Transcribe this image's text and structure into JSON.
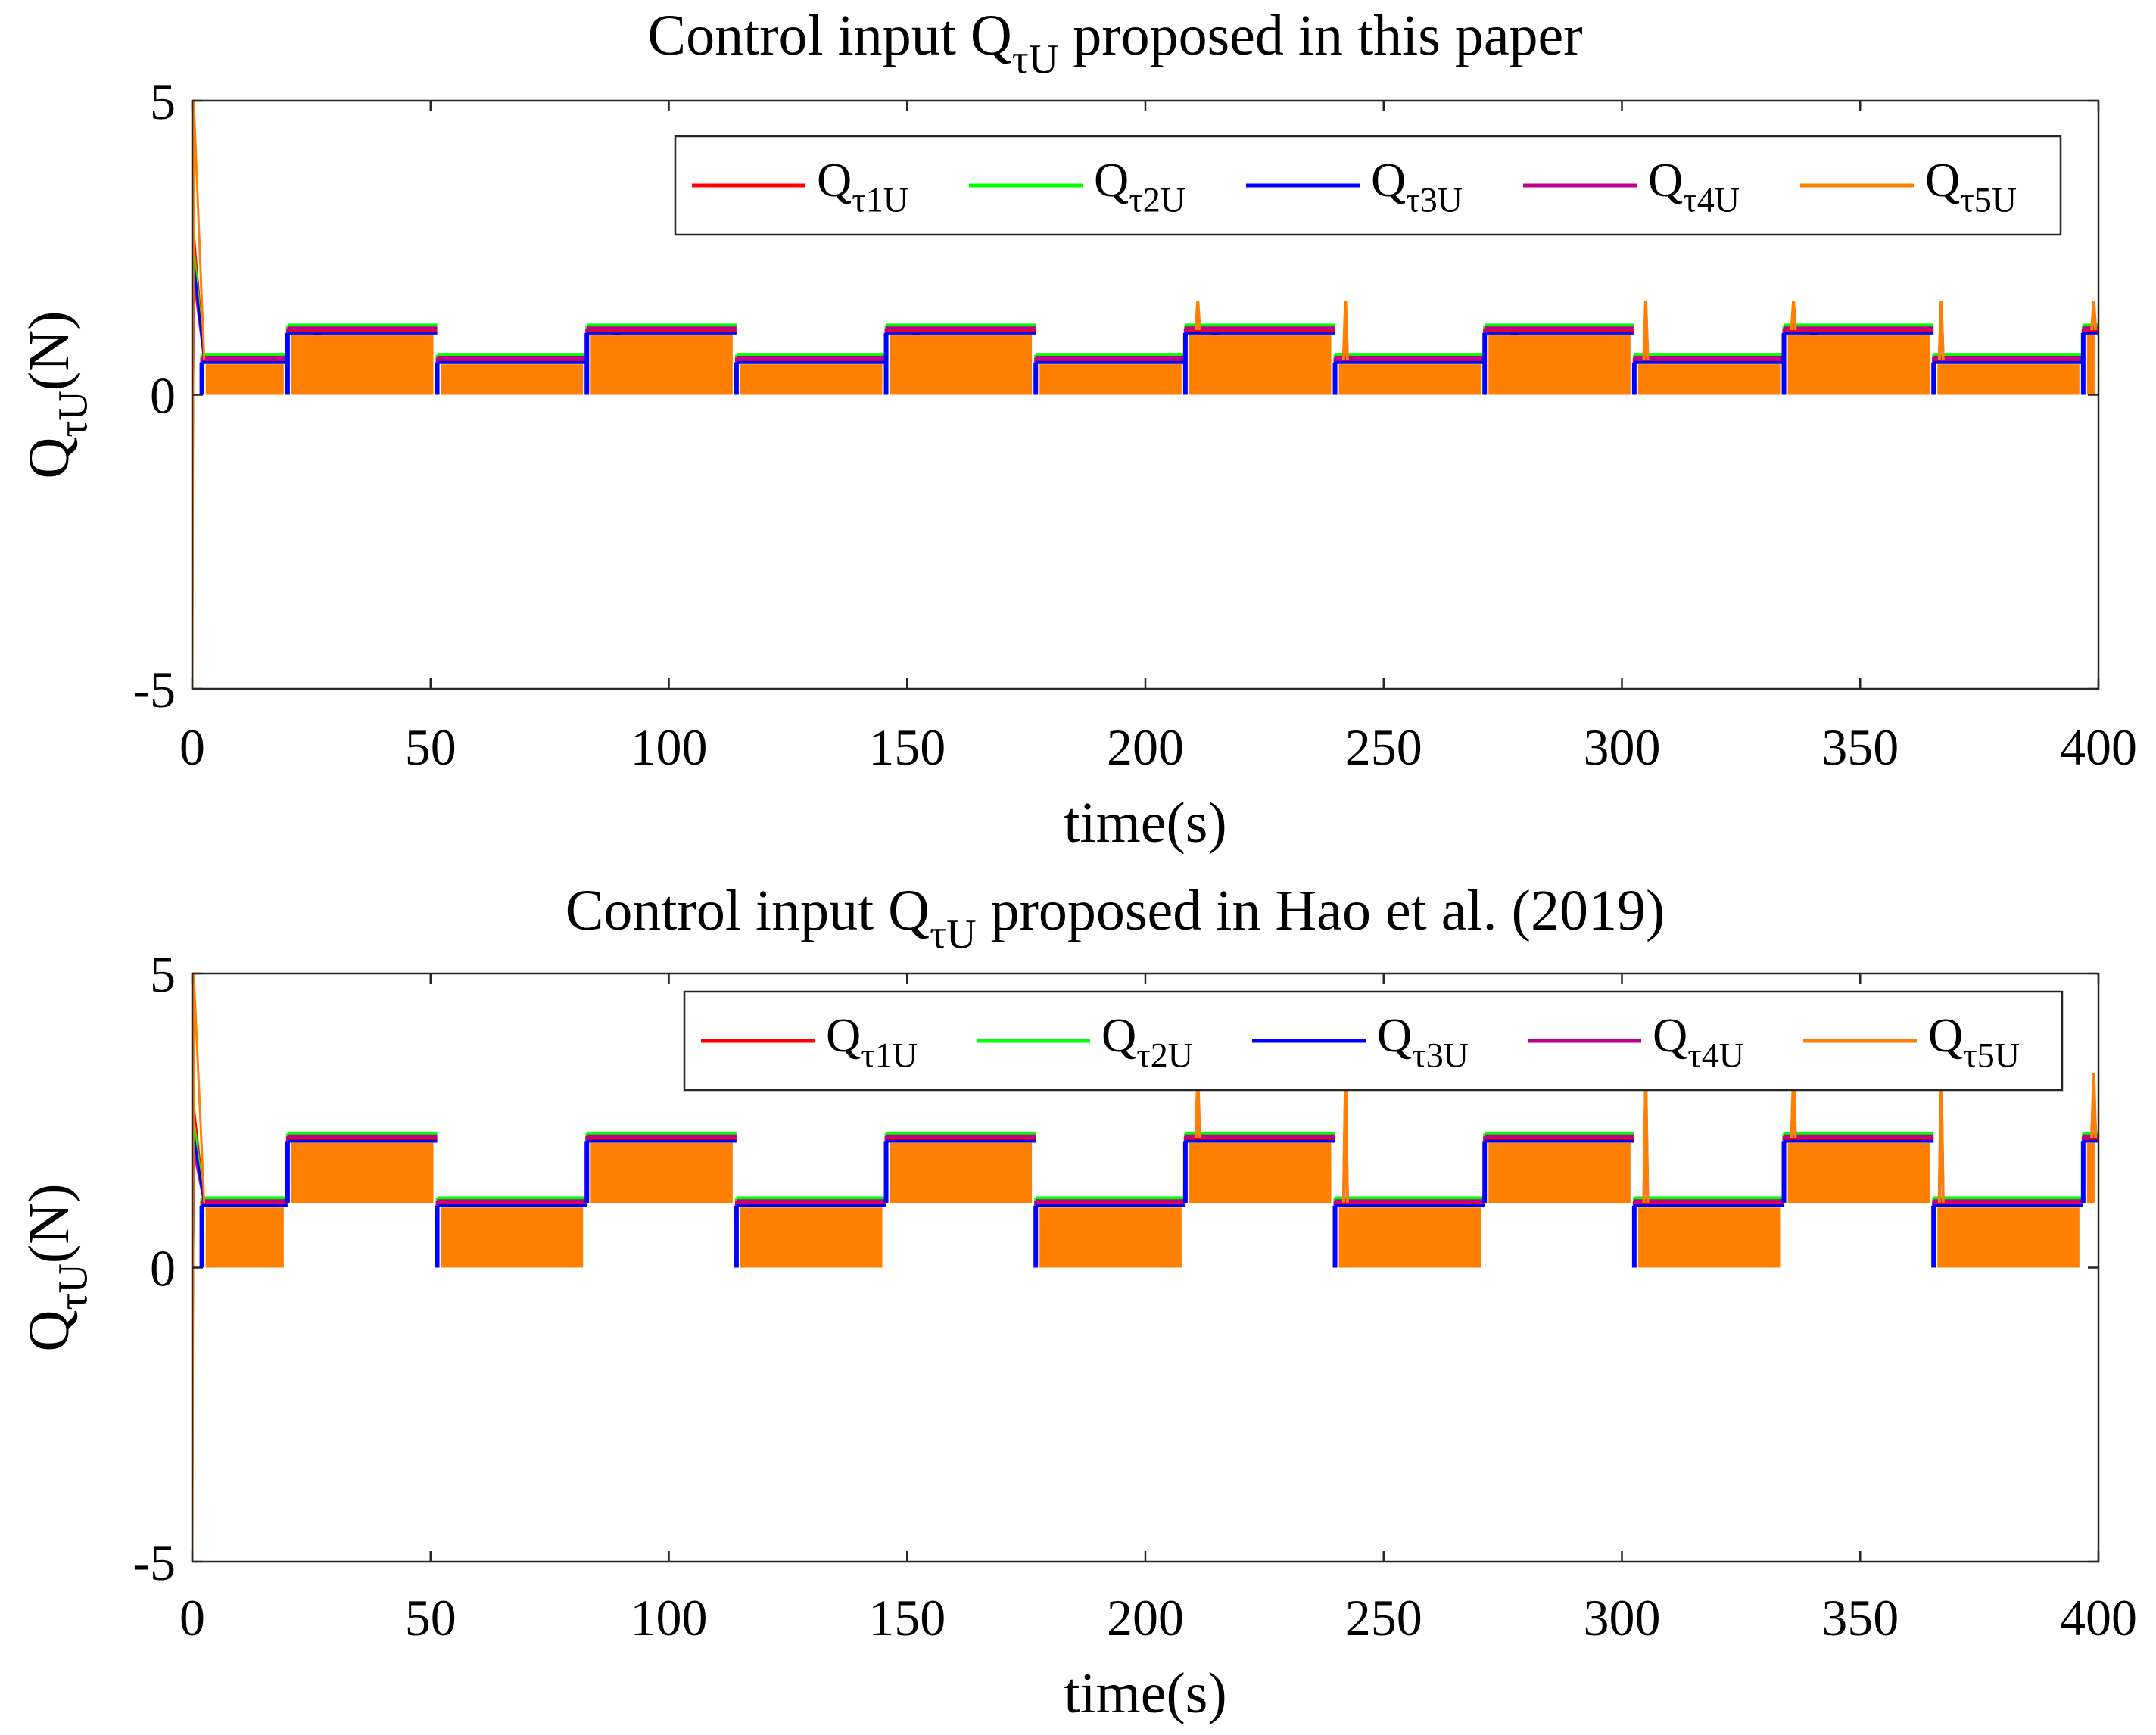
{
  "figure": {
    "background": "#ffffff"
  },
  "chart_data": [
    {
      "type": "line",
      "title": "Control input Q",
      "title_sub": "τU",
      "title_rest": " proposed in this paper",
      "xlabel": "time(s)",
      "ylabel": "Q",
      "ylabel_sub": "τU",
      "ylabel_rest": "(N)",
      "xlim": [
        0,
        400
      ],
      "ylim": [
        -5,
        5
      ],
      "xticks": [
        "0",
        "50",
        "100",
        "150",
        "200",
        "250",
        "300",
        "350",
        "400"
      ],
      "yticks": [
        "-5",
        "0",
        "5"
      ],
      "grid": false,
      "legend_position": "top-right",
      "signal": {
        "switch_period": 31.4,
        "first_switch": 20,
        "low_level_envelope": [
          0,
          0.6
        ],
        "high_level_envelope": [
          0,
          1.1
        ],
        "initial_transient_peak": 5,
        "initial_transient_min": -5,
        "spike_times": [
          211,
          242,
          305,
          336,
          367,
          399
        ],
        "spike_peak": 1.6
      },
      "series": [
        {
          "name": "Q",
          "sub": "τ1U",
          "color": "#ff0000"
        },
        {
          "name": "Q",
          "sub": "τ2U",
          "color": "#00ff00"
        },
        {
          "name": "Q",
          "sub": "τ3U",
          "color": "#0000ff"
        },
        {
          "name": "Q",
          "sub": "τ4U",
          "color": "#c0008a"
        },
        {
          "name": "Q",
          "sub": "τ5U",
          "color": "#ff8000"
        }
      ]
    },
    {
      "type": "line",
      "title": "Control input Q",
      "title_sub": "τU",
      "title_rest": " proposed  in Hao et al. (2019)",
      "xlabel": "time(s)",
      "ylabel": "Q",
      "ylabel_sub": "τU",
      "ylabel_rest": "(N)",
      "xlim": [
        0,
        400
      ],
      "ylim": [
        -5,
        5
      ],
      "xticks": [
        "0",
        "50",
        "100",
        "150",
        "200",
        "250",
        "300",
        "350",
        "400"
      ],
      "yticks": [
        "-5",
        "0",
        "5"
      ],
      "grid": false,
      "legend_position": "top-right",
      "signal": {
        "switch_period": 31.4,
        "first_switch": 20,
        "low_level_envelope": [
          0,
          1.1
        ],
        "high_level_envelope": [
          1.1,
          2.2
        ],
        "initial_transient_peak": 5,
        "initial_transient_min": -5,
        "spike_times": [
          211,
          242,
          305,
          336,
          367,
          399
        ],
        "spike_peak": 3.3
      },
      "series": [
        {
          "name": "Q",
          "sub": "τ1U",
          "color": "#ff0000"
        },
        {
          "name": "Q",
          "sub": "τ2U",
          "color": "#00ff00"
        },
        {
          "name": "Q",
          "sub": "τ3U",
          "color": "#0000ff"
        },
        {
          "name": "Q",
          "sub": "τ4U",
          "color": "#c0008a"
        },
        {
          "name": "Q",
          "sub": "τ5U",
          "color": "#ff8000"
        }
      ]
    }
  ]
}
